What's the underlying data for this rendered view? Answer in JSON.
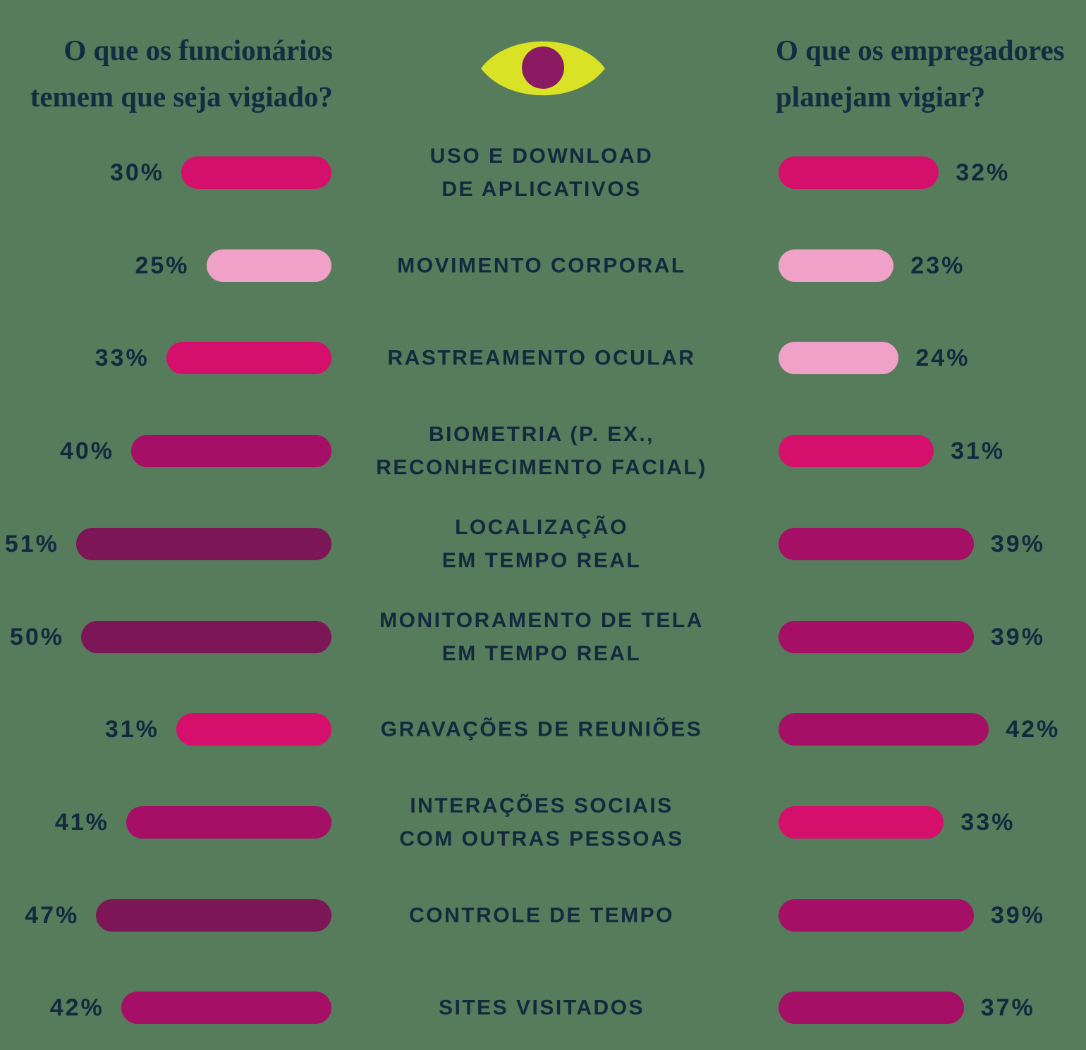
{
  "page": {
    "background_color": "#567C5C",
    "text_color": "#13293E"
  },
  "headers": {
    "left_line1": "O que os funcionários",
    "left_line2": "temem que seja vigiado?",
    "right_line1": "O que os empregadores",
    "right_line2": "planejam vigiar?"
  },
  "eye_icon": {
    "iris_color": "#D9E224",
    "pupil_color": "#8A1B63"
  },
  "palette": {
    "light": "#F0A1C7",
    "bright": "#D5106C",
    "medium": "#A50F66",
    "dark": "#7D1656"
  },
  "chart_data": {
    "type": "bar",
    "orientation": "horizontal-bidirectional",
    "value_suffix": "%",
    "value_range": [
      0,
      60
    ],
    "categories": [
      [
        "USO E DOWNLOAD",
        "DE APLICATIVOS"
      ],
      [
        "MOVIMENTO CORPORAL"
      ],
      [
        "RASTREAMENTO OCULAR"
      ],
      [
        "BIOMETRIA (P. EX.,",
        "RECONHECIMENTO FACIAL)"
      ],
      [
        "LOCALIZAÇÃO",
        "EM TEMPO REAL"
      ],
      [
        "MONITORAMENTO DE TELA",
        "EM TEMPO REAL"
      ],
      [
        "GRAVAÇÕES DE REUNIÕES"
      ],
      [
        "INTERAÇÕES SOCIAIS",
        "COM OUTRAS PESSOAS"
      ],
      [
        "CONTROLE DE TEMPO"
      ],
      [
        "SITES VISITADOS"
      ]
    ],
    "series": [
      {
        "name": "O que os funcionários temem que seja vigiado?",
        "side": "left",
        "values": [
          30,
          25,
          33,
          40,
          51,
          50,
          31,
          41,
          47,
          42
        ],
        "labels": [
          "30%",
          "25%",
          "33%",
          "40%",
          "51%",
          "50%",
          "31%",
          "41%",
          "47%",
          "42%"
        ],
        "colors": [
          "bright",
          "light",
          "bright",
          "medium",
          "dark",
          "dark",
          "bright",
          "medium",
          "dark",
          "medium"
        ]
      },
      {
        "name": "O que os empregadores planejam vigiar?",
        "side": "right",
        "values": [
          32,
          23,
          24,
          31,
          39,
          39,
          42,
          33,
          39,
          37
        ],
        "labels": [
          "32%",
          "23%",
          "24%",
          "31%",
          "39%",
          "39%",
          "42%",
          "33%",
          "39%",
          "37%"
        ],
        "colors": [
          "bright",
          "light",
          "light",
          "bright",
          "medium",
          "medium",
          "medium",
          "bright",
          "medium",
          "medium"
        ]
      }
    ],
    "legend": "none",
    "grid": "off",
    "axes": "hidden"
  }
}
